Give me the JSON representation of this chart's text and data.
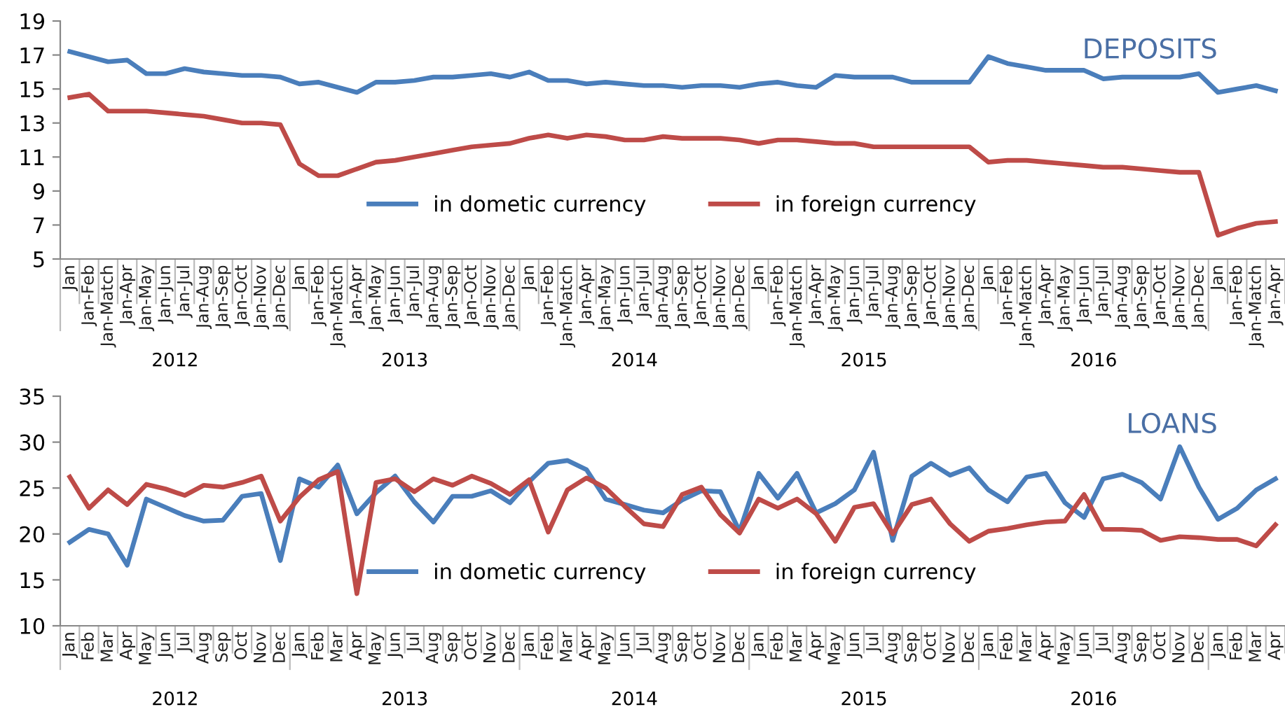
{
  "chart_data": [
    {
      "type": "line",
      "title": "DEPOSITS",
      "categories": [
        "Jan",
        "Jan-Feb",
        "Jan-Match",
        "Jan-Apr",
        "Jan-May",
        "Jan-Jun",
        "Jan-Jul",
        "Jan-Aug",
        "Jan-Sep",
        "Jan-Oct",
        "Jan-Nov",
        "Jan-Dec",
        "Jan",
        "Jan-Feb",
        "Jan-Match",
        "Jan-Apr",
        "Jan-May",
        "Jan-Jun",
        "Jan-Jul",
        "Jan-Aug",
        "Jan-Sep",
        "Jan-Oct",
        "Jan-Nov",
        "Jan-Dec",
        "Jan",
        "Jan-Feb",
        "Jan-Match",
        "Jan-Apr",
        "Jan-May",
        "Jan-Jun",
        "Jan-Jul",
        "Jan-Aug",
        "Jan-Sep",
        "Jan-Oct",
        "Jan-Nov",
        "Jan-Dec",
        "Jan",
        "Jan-Feb",
        "Jan-Match",
        "Jan-Apr",
        "Jan-May",
        "Jan-Jun",
        "Jan-Jul",
        "Jan-Aug",
        "Jan-Sep",
        "Jan-Oct",
        "Jan-Nov",
        "Jan-Dec",
        "Jan",
        "Jan-Feb",
        "Jan-Match",
        "Jan-Apr",
        "Jan-May",
        "Jan-Jun",
        "Jan-Jul",
        "Jan-Aug",
        "Jan-Sep",
        "Jan-Oct",
        "Jan-Nov",
        "Jan-Dec",
        "Jan",
        "Jan-Feb",
        "Jan-Match",
        "Jan-Apr"
      ],
      "series": [
        {
          "name": "in dometic currency",
          "color": "#4a7ebb",
          "values": [
            17.2,
            16.9,
            16.6,
            16.7,
            15.9,
            15.9,
            16.2,
            16.0,
            15.9,
            15.8,
            15.8,
            15.7,
            15.3,
            15.4,
            15.1,
            14.8,
            15.4,
            15.4,
            15.5,
            15.7,
            15.7,
            15.8,
            15.9,
            15.7,
            16.0,
            15.5,
            15.5,
            15.3,
            15.4,
            15.3,
            15.2,
            15.2,
            15.1,
            15.2,
            15.2,
            15.1,
            15.3,
            15.4,
            15.2,
            15.1,
            15.8,
            15.7,
            15.7,
            15.7,
            15.4,
            15.4,
            15.4,
            15.4,
            16.9,
            16.5,
            16.3,
            16.1,
            16.1,
            16.1,
            15.6,
            15.7,
            15.7,
            15.7,
            15.7,
            15.9,
            14.8,
            15.0,
            15.2,
            14.9
          ]
        },
        {
          "name": "in foreign currency",
          "color": "#be4b48",
          "values": [
            14.5,
            14.7,
            13.7,
            13.7,
            13.7,
            13.6,
            13.5,
            13.4,
            13.2,
            13.0,
            13.0,
            12.9,
            10.6,
            9.9,
            9.9,
            10.3,
            10.7,
            10.8,
            11.0,
            11.2,
            11.4,
            11.6,
            11.7,
            11.8,
            12.1,
            12.3,
            12.1,
            12.3,
            12.2,
            12.0,
            12.0,
            12.2,
            12.1,
            12.1,
            12.1,
            12.0,
            11.8,
            12.0,
            12.0,
            11.9,
            11.8,
            11.8,
            11.6,
            11.6,
            11.6,
            11.6,
            11.6,
            11.6,
            10.7,
            10.8,
            10.8,
            10.7,
            10.6,
            10.5,
            10.4,
            10.4,
            10.3,
            10.2,
            10.1,
            10.1,
            6.4,
            6.8,
            7.1,
            7.2
          ]
        }
      ],
      "ylim": [
        5,
        19
      ],
      "yticks": [
        5,
        7,
        9,
        11,
        13,
        15,
        17,
        19
      ],
      "grid": false,
      "legend": "bottom",
      "marker": "none",
      "line_style": "solid",
      "annotations": [
        "2012",
        "2013",
        "2014",
        "2015",
        "2016"
      ]
    },
    {
      "type": "line",
      "title": "LOANS",
      "categories": [
        "Jan",
        "Feb",
        "Mar",
        "Apr",
        "May",
        "Jun",
        "Jul",
        "Aug",
        "Sep",
        "Oct",
        "Nov",
        "Dec",
        "Jan",
        "Feb",
        "Mar",
        "Apr",
        "May",
        "Jun",
        "Jul",
        "Aug",
        "Sep",
        "Oct",
        "Nov",
        "Dec",
        "Jan",
        "Feb",
        "Mar",
        "Apr",
        "May",
        "Jun",
        "Jul",
        "Aug",
        "Sep",
        "Oct",
        "Nov",
        "Dec",
        "Jan",
        "Feb",
        "Mar",
        "Apr",
        "May",
        "Jun",
        "Jul",
        "Aug",
        "Sep",
        "Oct",
        "Nov",
        "Dec",
        "Jan",
        "Feb",
        "Mar",
        "Apr",
        "May",
        "Jun",
        "Jul",
        "Aug",
        "Sep",
        "Oct",
        "Nov",
        "Dec",
        "Jan",
        "Feb",
        "Mar",
        "Apr"
      ],
      "series": [
        {
          "name": "in dometic currency",
          "color": "#4a7ebb",
          "values": [
            19.1,
            20.5,
            20.0,
            16.6,
            23.8,
            22.9,
            22.0,
            21.4,
            21.5,
            24.1,
            24.4,
            17.1,
            26.0,
            25.1,
            27.5,
            22.2,
            24.5,
            26.3,
            23.5,
            21.3,
            24.1,
            24.1,
            24.7,
            23.4,
            25.7,
            27.7,
            28.0,
            27.0,
            23.8,
            23.2,
            22.6,
            22.3,
            23.7,
            24.7,
            24.6,
            20.3,
            26.6,
            23.9,
            26.6,
            22.3,
            23.3,
            24.8,
            28.9,
            19.3,
            26.3,
            27.7,
            26.4,
            27.2,
            24.8,
            23.5,
            26.2,
            26.6,
            23.4,
            21.8,
            26.0,
            26.5,
            25.6,
            23.8,
            29.5,
            25.1,
            21.6,
            22.8,
            24.8,
            26.0
          ]
        },
        {
          "name": "in foreign currency",
          "color": "#be4b48",
          "values": [
            26.2,
            22.8,
            24.8,
            23.2,
            25.4,
            24.9,
            24.2,
            25.3,
            25.1,
            25.6,
            26.3,
            21.4,
            24.0,
            25.9,
            26.8,
            13.5,
            25.6,
            26.0,
            24.6,
            26.0,
            25.3,
            26.3,
            25.5,
            24.3,
            25.9,
            20.2,
            24.8,
            26.1,
            25.0,
            23.0,
            21.1,
            20.8,
            24.3,
            25.1,
            22.1,
            20.1,
            23.8,
            22.8,
            23.8,
            22.2,
            19.2,
            22.9,
            23.3,
            20.0,
            23.2,
            23.8,
            21.1,
            19.2,
            20.3,
            20.6,
            21.0,
            21.3,
            21.4,
            24.3,
            20.5,
            20.5,
            20.4,
            19.3,
            19.7,
            19.6,
            19.4,
            19.4,
            18.7,
            21.0
          ]
        }
      ],
      "ylim": [
        10,
        35
      ],
      "yticks": [
        10,
        15,
        20,
        25,
        30,
        35
      ],
      "grid": false,
      "legend": "bottom",
      "marker": "none",
      "line_style": "solid",
      "annotations": [
        "2012",
        "2013",
        "2014",
        "2015",
        "2016"
      ]
    }
  ]
}
